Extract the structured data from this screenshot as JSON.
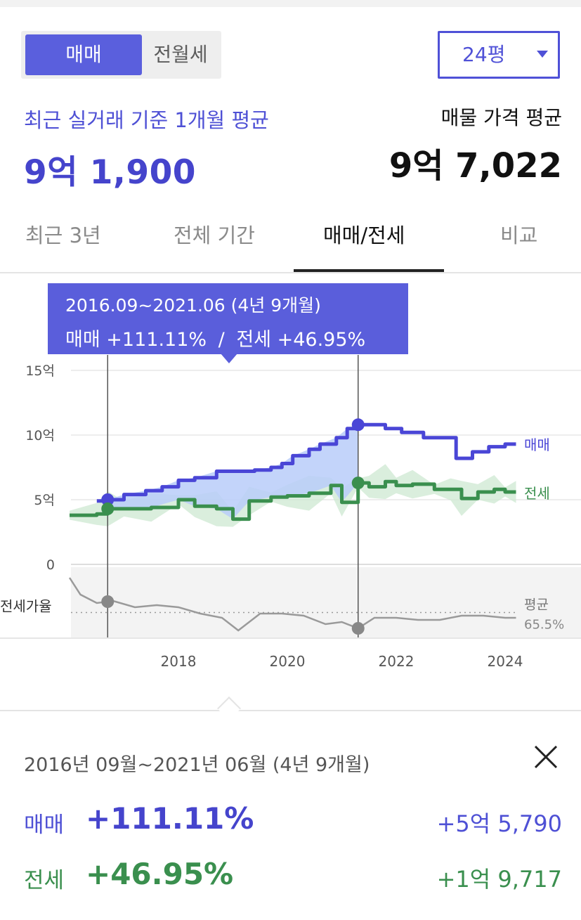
{
  "toggle": {
    "active": "매매",
    "inactive": "전월세"
  },
  "size_select": {
    "value": "24평"
  },
  "summary": {
    "recent_label": "최근 실거래 기준 1개월 평균",
    "recent_price": "9억 1,900",
    "listing_label": "매물 가격 평균",
    "listing_price": "9억 7,022"
  },
  "tabs": [
    {
      "label": "최근 3년"
    },
    {
      "label": "전체 기간"
    },
    {
      "label": "매매/전세",
      "active": true
    },
    {
      "label": "비교"
    }
  ],
  "tooltip": {
    "range": "2016.09~2021.06 (4년 9개월)",
    "sale_label": "매매",
    "sale_pct": "+111.11%",
    "separator": "/",
    "jeonse_label": "전세",
    "jeonse_pct": "+46.95%"
  },
  "colors": {
    "sale": "#4a46d6",
    "sale_fill": "#b9cdf9",
    "jeonse": "#3a8f4e",
    "jeonse_band": "#cde8d2",
    "ratio": "#9a9a9a",
    "accent": "#5a5edb"
  },
  "chart_data": {
    "type": "line",
    "y_ticks": [
      "15억",
      "10억",
      "5억",
      "0"
    ],
    "ylim": [
      0,
      15
    ],
    "x_ticks": [
      "2018",
      "2020",
      "2022",
      "2024"
    ],
    "series": [
      {
        "name": "매매",
        "x": [
          2016.5,
          2016.7,
          2017.0,
          2017.4,
          2017.7,
          2018.0,
          2018.3,
          2018.7,
          2019.0,
          2019.4,
          2019.7,
          2019.9,
          2020.1,
          2020.4,
          2020.6,
          2020.9,
          2021.1,
          2021.3,
          2021.5,
          2021.8,
          2022.1,
          2022.5,
          2022.8,
          2023.1,
          2023.4,
          2023.7,
          2024.0,
          2024.2
        ],
        "values": [
          4.9,
          5.0,
          5.4,
          5.7,
          6.0,
          6.5,
          6.7,
          7.2,
          7.2,
          7.3,
          7.5,
          7.8,
          8.4,
          8.9,
          9.3,
          9.8,
          10.5,
          10.8,
          10.8,
          10.5,
          10.2,
          9.8,
          9.8,
          8.2,
          8.7,
          9.1,
          9.3,
          9.3
        ]
      },
      {
        "name": "전세",
        "x": [
          2016.0,
          2016.5,
          2016.7,
          2017.0,
          2017.5,
          2018.0,
          2018.3,
          2018.7,
          2019.0,
          2019.3,
          2019.7,
          2020.0,
          2020.4,
          2020.8,
          2021.0,
          2021.3,
          2021.5,
          2021.8,
          2022.0,
          2022.3,
          2022.7,
          2023.0,
          2023.2,
          2023.5,
          2023.8,
          2024.0,
          2024.2
        ],
        "values": [
          3.8,
          3.9,
          4.3,
          4.3,
          4.4,
          5.0,
          4.5,
          4.3,
          3.5,
          4.9,
          5.2,
          5.3,
          5.5,
          6.1,
          4.8,
          6.3,
          6.0,
          6.4,
          6.1,
          6.2,
          5.8,
          5.8,
          5.1,
          5.6,
          5.8,
          5.6,
          5.6
        ]
      },
      {
        "name": "평균",
        "unit": "전세가율",
        "average_label": "65.5%",
        "x": [
          2016.0,
          2016.2,
          2016.5,
          2016.8,
          2017.2,
          2017.6,
          2018.0,
          2018.4,
          2018.8,
          2019.1,
          2019.5,
          2019.9,
          2020.3,
          2020.7,
          2021.0,
          2021.3,
          2021.6,
          2022.0,
          2022.4,
          2022.8,
          2023.2,
          2023.6,
          2024.0,
          2024.2
        ],
        "values": [
          82,
          74,
          70,
          71,
          68,
          69,
          68,
          65,
          63,
          57,
          65,
          65,
          64,
          60,
          61,
          58,
          63,
          63,
          62,
          62,
          64,
          64,
          63,
          63
        ]
      }
    ],
    "selection": {
      "start": 2016.7,
      "end": 2021.3
    }
  },
  "detail": {
    "range": "2016년 09월~2021년 06월 (4년 9개월)",
    "sale": {
      "label": "매매",
      "pct": "+111.11%",
      "amount": "+5억 5,790"
    },
    "jeonse": {
      "label": "전세",
      "pct": "+46.95%",
      "amount": "+1억 9,717"
    }
  }
}
